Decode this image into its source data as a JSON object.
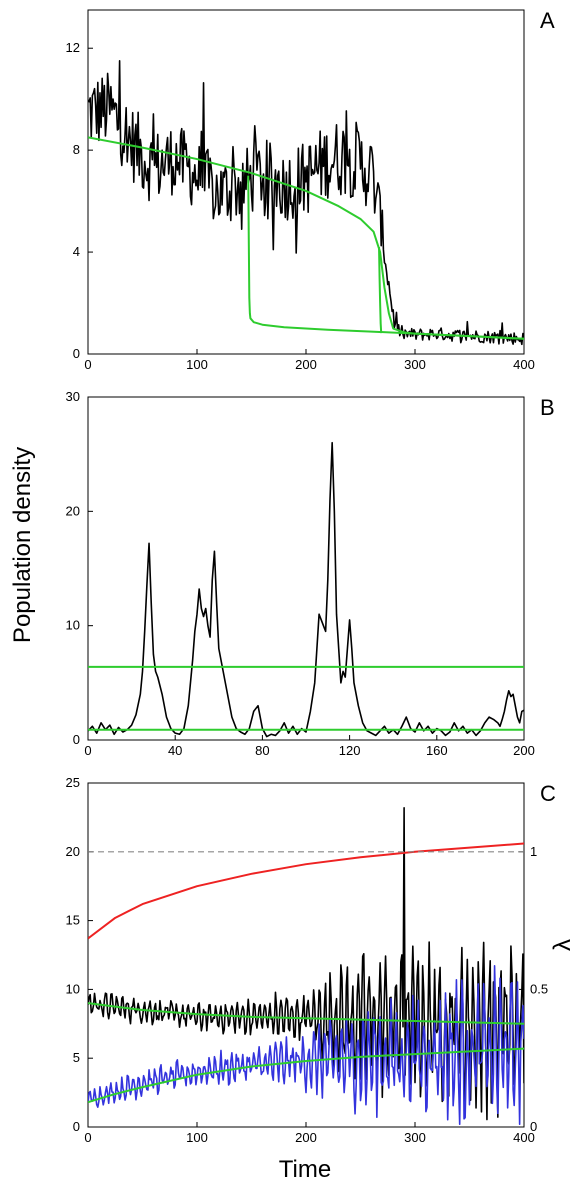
{
  "figure": {
    "ylabel": "Population density",
    "xlabel": "Time"
  },
  "chart_data": [
    {
      "type": "line",
      "panel_label": "A",
      "xlim": [
        0,
        400
      ],
      "ylim": [
        0,
        13.5
      ],
      "xticks": [
        0,
        100,
        200,
        300,
        400
      ],
      "yticks": [
        0,
        4,
        8,
        12
      ],
      "series": [
        {
          "color": "#000000",
          "kind": "stochastic",
          "anchors": {
            "x": [
              0,
              20,
              40,
              60,
              80,
              100,
              120,
              140,
              160,
              180,
              200,
              220,
              240,
              260,
              268,
              275,
              282,
              290,
              300,
              320,
              340,
              360,
              380,
              400
            ],
            "y": [
              9.5,
              9.6,
              8.3,
              7.3,
              7.7,
              7.0,
              6.3,
              6.6,
              7.1,
              6.6,
              6.9,
              7.6,
              7.8,
              7.1,
              5.5,
              3.0,
              1.0,
              0.8,
              0.75,
              0.8,
              0.72,
              0.7,
              0.65,
              0.6
            ],
            "noise": [
              1.5,
              1.5,
              1.5,
              1.5,
              1.4,
              1.4,
              1.4,
              1.4,
              1.4,
              1.4,
              1.5,
              1.5,
              1.6,
              1.5,
              1.0,
              0.5,
              0.3,
              0.25,
              0.25,
              0.25,
              0.25,
              0.25,
              0.25,
              0.25
            ]
          }
        },
        {
          "color": "#2ecc2e",
          "kind": "curve",
          "x": [
            0,
            50,
            100,
            150,
            200,
            230,
            250,
            262,
            268,
            272,
            276,
            280,
            290,
            300,
            350,
            400
          ],
          "y": [
            8.5,
            8.1,
            7.65,
            7.1,
            6.4,
            5.8,
            5.3,
            4.8,
            4.0,
            2.6,
            1.6,
            1.0,
            0.85,
            0.8,
            0.7,
            0.6
          ]
        },
        {
          "color": "#2ecc2e",
          "kind": "curve",
          "x": [
            147,
            147.5,
            148,
            148.5,
            149,
            152,
            160,
            180,
            220,
            260,
            300,
            350,
            400
          ],
          "y": [
            7.0,
            4.5,
            2.2,
            1.6,
            1.4,
            1.25,
            1.15,
            1.05,
            0.95,
            0.88,
            0.8,
            0.7,
            0.6
          ]
        },
        {
          "color": "#2ecc2e",
          "kind": "curve",
          "x": [
            267,
            267.5,
            268,
            268.5,
            269
          ],
          "y": [
            4.2,
            3.0,
            2.0,
            1.2,
            0.82
          ]
        }
      ]
    },
    {
      "type": "line",
      "panel_label": "B",
      "xlim": [
        0,
        200
      ],
      "ylim": [
        0,
        30
      ],
      "xticks": [
        0,
        40,
        80,
        120,
        160,
        200
      ],
      "yticks": [
        0,
        10,
        20,
        30
      ],
      "series": [
        {
          "color": "#000000",
          "kind": "path",
          "x": [
            0,
            2,
            4,
            6,
            8,
            10,
            12,
            14,
            16,
            18,
            20,
            22,
            24,
            25,
            26,
            27,
            28,
            29,
            30,
            31,
            32,
            34,
            36,
            38,
            40,
            42,
            44,
            46,
            48,
            49,
            50,
            51,
            52,
            53,
            54,
            55,
            56,
            57,
            58,
            59,
            60,
            62,
            64,
            66,
            68,
            70,
            72,
            74,
            76,
            78,
            80,
            82,
            84,
            86,
            88,
            90,
            92,
            94,
            96,
            98,
            100,
            102,
            104,
            105,
            106,
            107,
            108,
            109,
            110,
            111,
            112,
            113,
            114,
            115,
            116,
            117,
            118,
            119,
            120,
            121,
            122,
            124,
            126,
            128,
            130,
            132,
            134,
            136,
            138,
            140,
            142,
            144,
            146,
            148,
            150,
            152,
            154,
            156,
            158,
            160,
            162,
            164,
            166,
            168,
            170,
            172,
            174,
            176,
            178,
            180,
            182,
            184,
            186,
            188,
            189,
            190,
            191,
            192,
            193,
            194,
            195,
            196,
            197,
            198,
            199,
            200
          ],
          "y": [
            0.8,
            1.2,
            0.6,
            1.5,
            0.9,
            1.3,
            0.5,
            1.1,
            0.7,
            0.9,
            1.3,
            2.2,
            4.0,
            6.0,
            9.5,
            13.5,
            17.2,
            12.0,
            7.5,
            6.0,
            5.5,
            4.0,
            2.0,
            1.0,
            0.6,
            0.5,
            1.0,
            3.0,
            7.0,
            9.5,
            11.0,
            13.2,
            11.5,
            10.8,
            11.5,
            10.0,
            9.0,
            14.0,
            16.5,
            12.0,
            8.0,
            6.0,
            4.0,
            2.0,
            1.0,
            0.7,
            0.5,
            1.0,
            2.5,
            3.0,
            1.0,
            0.3,
            0.5,
            0.4,
            0.8,
            1.5,
            0.6,
            1.2,
            0.5,
            1.0,
            0.7,
            2.5,
            5.0,
            8.0,
            11.0,
            10.5,
            10.0,
            9.5,
            14.0,
            21.0,
            26.0,
            20.0,
            11.0,
            8.0,
            5.0,
            6.0,
            5.5,
            8.0,
            10.5,
            8.0,
            5.0,
            3.0,
            1.5,
            0.8,
            0.6,
            0.4,
            0.8,
            1.2,
            0.6,
            0.9,
            0.5,
            1.2,
            2.0,
            1.0,
            0.7,
            1.5,
            0.8,
            1.2,
            0.6,
            1.0,
            0.8,
            0.4,
            0.7,
            1.5,
            0.8,
            1.2,
            0.6,
            0.9,
            0.4,
            0.8,
            1.5,
            2.0,
            1.8,
            1.5,
            1.2,
            1.8,
            2.5,
            3.5,
            4.3,
            3.8,
            4.0,
            3.0,
            2.0,
            1.5,
            2.5,
            2.6
          ]
        },
        {
          "color": "#2ecc2e",
          "kind": "hline",
          "x": [
            0,
            200
          ],
          "y": [
            6.4,
            6.4
          ]
        },
        {
          "color": "#2ecc2e",
          "kind": "hline",
          "x": [
            0,
            200
          ],
          "y": [
            0.9,
            0.9
          ]
        }
      ]
    },
    {
      "type": "line",
      "panel_label": "C",
      "xlim": [
        0,
        400
      ],
      "ylim": [
        0,
        25
      ],
      "xticks": [
        0,
        100,
        200,
        300,
        400
      ],
      "yticks": [
        0,
        5,
        10,
        15,
        20,
        25
      ],
      "y2label": "λ",
      "y2lim": [
        0,
        1.25
      ],
      "y2ticks": [
        0,
        0.5,
        1
      ],
      "y2ticklabels": [
        "0",
        "0.5",
        "1"
      ],
      "series": [
        {
          "color": "#000000",
          "kind": "oscillating",
          "anchors": {
            "x": [
              0,
              50,
              100,
              150,
              200,
              250,
              300,
              350,
              400
            ],
            "mean": [
              9.0,
              8.5,
              8.0,
              8.0,
              8.0,
              7.8,
              7.6,
              7.5,
              7.4
            ],
            "amp": [
              1.2,
              1.2,
              1.3,
              1.6,
              2.5,
              6.0,
              6.5,
              7.5,
              8.0
            ]
          },
          "spike": {
            "x": 290,
            "y": 23.2
          }
        },
        {
          "color": "#3333dd",
          "kind": "oscillating",
          "anchors": {
            "x": [
              0,
              50,
              100,
              150,
              200,
              250,
              300,
              350,
              400
            ],
            "mean": [
              2.0,
              3.2,
              4.0,
              4.5,
              4.8,
              5.0,
              5.2,
              5.4,
              5.6
            ],
            "amp": [
              0.8,
              1.2,
              1.4,
              1.6,
              2.5,
              4.5,
              5.0,
              6.5,
              7.0
            ]
          }
        },
        {
          "color": "#2ecc2e",
          "kind": "curve",
          "x": [
            0,
            50,
            100,
            150,
            200,
            250,
            300,
            350,
            400
          ],
          "y": [
            9.0,
            8.5,
            8.2,
            8.0,
            7.9,
            7.8,
            7.7,
            7.6,
            7.5
          ]
        },
        {
          "color": "#2ecc2e",
          "kind": "curve",
          "x": [
            0,
            25,
            50,
            100,
            150,
            200,
            250,
            300,
            350,
            400
          ],
          "y": [
            1.8,
            2.4,
            2.9,
            3.8,
            4.4,
            4.8,
            5.1,
            5.3,
            5.5,
            5.7
          ]
        },
        {
          "color": "#ee2222",
          "kind": "curve",
          "axis": "right",
          "x": [
            0,
            25,
            50,
            100,
            150,
            200,
            250,
            300,
            350,
            400
          ],
          "y": [
            0.685,
            0.76,
            0.81,
            0.875,
            0.92,
            0.955,
            0.98,
            1.0,
            1.015,
            1.03
          ]
        },
        {
          "color": "#888888",
          "kind": "dashed",
          "axis": "right",
          "x": [
            0,
            400
          ],
          "y": [
            1.0,
            1.0
          ]
        }
      ]
    }
  ]
}
